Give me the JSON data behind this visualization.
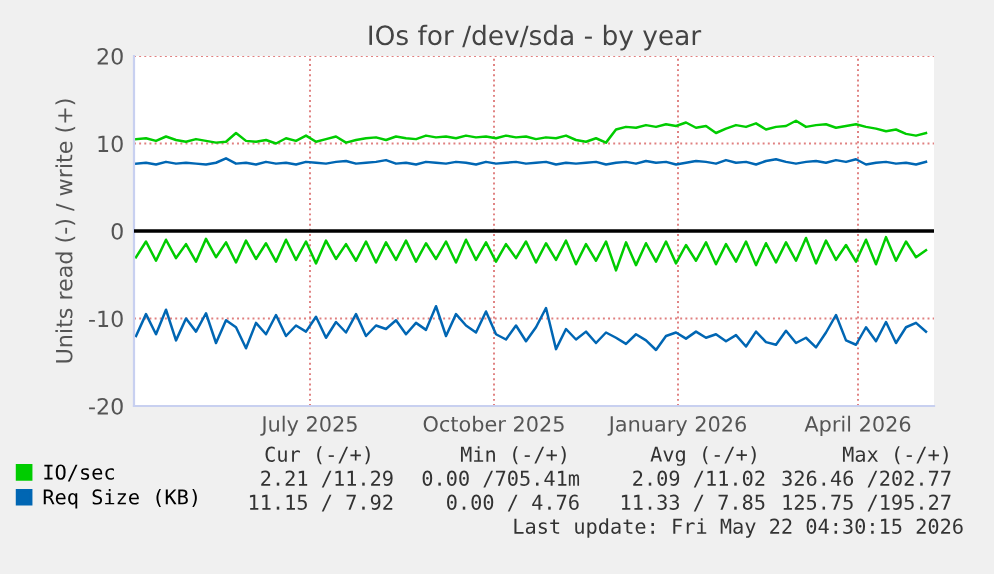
{
  "chart_data": {
    "type": "line",
    "title": "IOs for /dev/sda - by year",
    "ylabel": "Units read (-) / write (+)",
    "x": [
      "2025-04-05",
      "2025-04-10",
      "2025-04-15",
      "2025-04-20",
      "2025-04-25",
      "2025-04-30",
      "2025-05-05",
      "2025-05-10",
      "2025-05-15",
      "2025-05-20",
      "2025-05-25",
      "2025-05-30",
      "2025-06-04",
      "2025-06-09",
      "2025-06-14",
      "2025-06-19",
      "2025-06-24",
      "2025-06-29",
      "2025-07-04",
      "2025-07-09",
      "2025-07-14",
      "2025-07-19",
      "2025-07-24",
      "2025-07-29",
      "2025-08-03",
      "2025-08-08",
      "2025-08-13",
      "2025-08-18",
      "2025-08-23",
      "2025-08-28",
      "2025-09-02",
      "2025-09-07",
      "2025-09-12",
      "2025-09-17",
      "2025-09-22",
      "2025-09-27",
      "2025-10-02",
      "2025-10-07",
      "2025-10-12",
      "2025-10-17",
      "2025-10-22",
      "2025-10-27",
      "2025-11-01",
      "2025-11-06",
      "2025-11-11",
      "2025-11-16",
      "2025-11-21",
      "2025-11-26",
      "2025-12-01",
      "2025-12-06",
      "2025-12-11",
      "2025-12-16",
      "2025-12-21",
      "2025-12-26",
      "2025-12-31",
      "2026-01-05",
      "2026-01-10",
      "2026-01-15",
      "2026-01-20",
      "2026-01-25",
      "2026-01-30",
      "2026-02-04",
      "2026-02-09",
      "2026-02-14",
      "2026-02-19",
      "2026-02-24",
      "2026-03-01",
      "2026-03-06",
      "2026-03-11",
      "2026-03-16",
      "2026-03-21",
      "2026-03-26",
      "2026-03-31",
      "2026-04-05",
      "2026-04-10",
      "2026-04-15",
      "2026-04-20",
      "2026-04-25",
      "2026-04-30",
      "2026-05-05"
    ],
    "series": [
      {
        "name": "IO/sec",
        "color": "#00cc00",
        "values": [
          10.5,
          10.6,
          10.3,
          10.8,
          10.4,
          10.2,
          10.5,
          10.3,
          10.1,
          10.2,
          11.2,
          10.3,
          10.2,
          10.4,
          10.0,
          10.6,
          10.3,
          10.9,
          10.2,
          10.5,
          10.8,
          10.1,
          10.4,
          10.6,
          10.7,
          10.4,
          10.8,
          10.6,
          10.5,
          10.9,
          10.7,
          10.8,
          10.6,
          10.9,
          10.7,
          10.8,
          10.6,
          10.9,
          10.7,
          10.8,
          10.5,
          10.7,
          10.6,
          10.9,
          10.4,
          10.2,
          10.6,
          10.1,
          11.6,
          11.9,
          11.8,
          12.1,
          11.9,
          12.2,
          12.0,
          12.4,
          11.8,
          12.0,
          11.2,
          11.7,
          12.1,
          11.9,
          12.3,
          11.6,
          11.9,
          12.0,
          12.6,
          11.9,
          12.1,
          12.2,
          11.8,
          12.0,
          12.2,
          11.9,
          11.7,
          11.4,
          11.6,
          11.1,
          10.9,
          11.2
        ]
      },
      {
        "color": "#00cc00",
        "values": [
          -3.0,
          -1.2,
          -3.4,
          -1.0,
          -3.1,
          -1.5,
          -3.5,
          -0.9,
          -3.0,
          -1.3,
          -3.6,
          -1.1,
          -3.2,
          -1.4,
          -3.5,
          -1.0,
          -3.3,
          -1.2,
          -3.7,
          -1.1,
          -3.2,
          -1.5,
          -3.4,
          -1.2,
          -3.6,
          -1.3,
          -3.3,
          -1.1,
          -3.5,
          -1.4,
          -3.2,
          -1.2,
          -3.6,
          -1.0,
          -3.3,
          -1.3,
          -3.5,
          -1.5,
          -3.1,
          -1.2,
          -3.6,
          -1.4,
          -3.3,
          -1.1,
          -3.8,
          -1.5,
          -3.4,
          -1.2,
          -4.5,
          -1.3,
          -3.9,
          -1.4,
          -3.5,
          -1.2,
          -3.7,
          -1.6,
          -3.4,
          -1.3,
          -3.8,
          -1.5,
          -3.5,
          -1.2,
          -3.9,
          -1.4,
          -3.6,
          -1.3,
          -3.4,
          -0.8,
          -3.7,
          -1.1,
          -3.3,
          -1.6,
          -3.5,
          -1.0,
          -3.8,
          -0.7,
          -3.4,
          -1.2,
          -3.0,
          -2.2
        ]
      },
      {
        "name": "Req Size (KB)",
        "color": "#0066b3",
        "values": [
          7.7,
          7.8,
          7.6,
          7.9,
          7.7,
          7.8,
          7.7,
          7.6,
          7.8,
          8.3,
          7.7,
          7.8,
          7.6,
          7.9,
          7.7,
          7.8,
          7.6,
          7.9,
          7.8,
          7.7,
          7.9,
          8.0,
          7.7,
          7.8,
          7.9,
          8.1,
          7.7,
          7.8,
          7.6,
          7.9,
          7.8,
          7.7,
          7.9,
          7.8,
          7.6,
          7.9,
          7.7,
          7.8,
          7.9,
          7.7,
          7.8,
          7.9,
          7.6,
          7.8,
          7.7,
          7.8,
          7.9,
          7.6,
          7.8,
          7.9,
          7.7,
          8.0,
          7.8,
          7.9,
          7.6,
          7.8,
          8.0,
          7.9,
          7.7,
          8.1,
          7.8,
          7.9,
          7.6,
          8.0,
          8.2,
          7.9,
          7.7,
          7.9,
          8.0,
          7.8,
          8.1,
          7.9,
          8.2,
          7.6,
          7.8,
          7.9,
          7.7,
          7.8,
          7.6,
          7.9
        ]
      },
      {
        "color": "#0066b3",
        "values": [
          -12.0,
          -9.5,
          -11.8,
          -9.0,
          -12.5,
          -10.0,
          -11.5,
          -9.4,
          -12.8,
          -10.2,
          -11.0,
          -13.4,
          -10.5,
          -11.8,
          -9.6,
          -12.0,
          -10.8,
          -11.5,
          -9.8,
          -12.2,
          -10.4,
          -11.6,
          -9.5,
          -12.0,
          -10.8,
          -11.2,
          -10.2,
          -11.8,
          -10.5,
          -11.3,
          -8.6,
          -12.0,
          -9.5,
          -10.8,
          -11.6,
          -9.2,
          -11.8,
          -12.4,
          -10.8,
          -12.6,
          -11.0,
          -8.8,
          -13.5,
          -11.2,
          -12.4,
          -11.5,
          -12.8,
          -11.6,
          -12.2,
          -12.9,
          -11.8,
          -12.5,
          -13.6,
          -12.0,
          -11.6,
          -12.3,
          -11.5,
          -12.2,
          -11.8,
          -12.6,
          -11.9,
          -13.2,
          -11.5,
          -12.7,
          -13.0,
          -11.4,
          -12.8,
          -12.2,
          -13.3,
          -11.6,
          -9.6,
          -12.5,
          -13.0,
          -11.0,
          -12.6,
          -10.4,
          -12.8,
          -11.0,
          -10.5,
          -11.5
        ]
      }
    ],
    "xlim": [
      "2025-04-04",
      "2026-05-09"
    ],
    "xticks": [
      {
        "value": "2025-07-01",
        "label": "July 2025"
      },
      {
        "value": "2025-10-01",
        "label": "October 2025"
      },
      {
        "value": "2026-01-01",
        "label": "January 2026"
      },
      {
        "value": "2026-04-01",
        "label": "April 2026"
      }
    ],
    "ylim": [
      -20,
      20
    ],
    "yticks": [
      -20,
      -10,
      0,
      10,
      20
    ],
    "ref_lines": [
      {
        "axis": "y",
        "value": 0,
        "color": "#000000"
      }
    ],
    "grid": true,
    "legend": "bottom left",
    "annotations": [
      "Cur (-/+)",
      "Min (-/+)",
      "Avg (-/+)",
      "Max (-/+)",
      "2.21 /11.29",
      "0.00 /705.41m",
      "2.09 /11.02",
      "326.46 /202.77",
      "11.15 / 7.92",
      "0.00 / 4.76",
      "11.33 / 7.85",
      "125.75 /195.27",
      "Last update: Fri May 22 04:30:15 2026"
    ]
  }
}
